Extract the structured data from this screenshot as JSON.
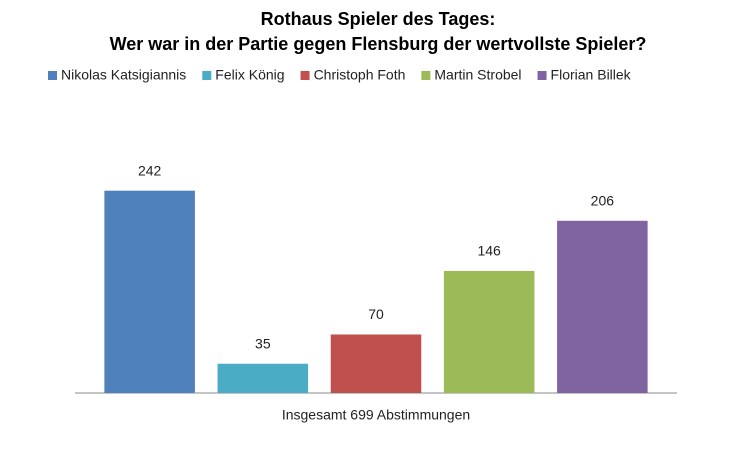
{
  "chart_data": {
    "type": "bar",
    "title": "Rothaus Spieler des Tages:",
    "subtitle": "Wer war in der Partie gegen Flensburg der wertvollste Spieler?",
    "categories": [
      "Insgesamt 699 Abstimmungen"
    ],
    "series": [
      {
        "name": "Nikolas Katsigiannis",
        "color": "#4f81bd",
        "values": [
          242
        ]
      },
      {
        "name": "Felix König",
        "color": "#4bacc6",
        "values": [
          35
        ]
      },
      {
        "name": "Christoph Foth",
        "color": "#c0504d",
        "values": [
          70
        ]
      },
      {
        "name": "Martin Strobel",
        "color": "#9bbb59",
        "values": [
          146
        ]
      },
      {
        "name": "Florian Billek",
        "color": "#8064a2",
        "values": [
          206
        ]
      }
    ],
    "ylim": [
      0,
      250
    ],
    "legend": "top",
    "data_labels": true
  }
}
